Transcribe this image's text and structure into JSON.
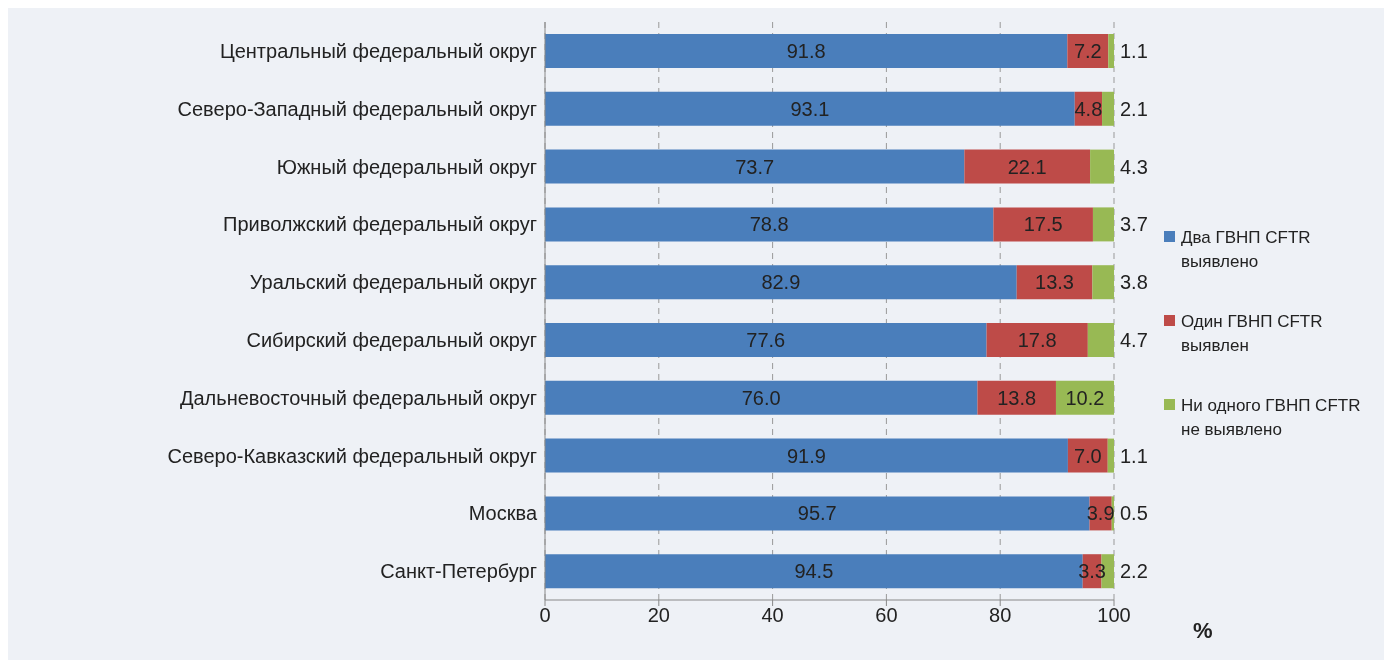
{
  "chart_data": {
    "type": "bar",
    "orientation": "horizontal",
    "stacked": true,
    "xlabel": "%",
    "categories": [
      "Центральный федеральный округ",
      "Северо-Западный федеральный округ",
      "Южный федеральный округ",
      "Приволжский федеральный округ",
      "Уральский федеральный округ",
      "Сибирский федеральный округ",
      "Дальневосточный федеральный округ",
      "Северо-Кавказский федеральный округ",
      "Москва",
      "Санкт-Петербург"
    ],
    "series": [
      {
        "name": "Два ГВНП CFTR выявлено",
        "color": "#4a7ebb",
        "values": [
          91.8,
          93.1,
          73.7,
          78.8,
          82.9,
          77.6,
          76.0,
          91.9,
          95.7,
          94.5
        ],
        "value_labels": [
          "91.8",
          "93.1",
          "73.7",
          "78.8",
          "82.9",
          "77.6",
          "76.0",
          "91.9",
          "95.7",
          "94.5"
        ]
      },
      {
        "name": "Один ГВНП CFTR выявлен",
        "color": "#be4b48",
        "values": [
          7.2,
          4.8,
          22.1,
          17.5,
          13.3,
          17.8,
          13.8,
          7.0,
          3.9,
          3.3
        ],
        "value_labels": [
          "7.2",
          "4.8",
          "22.1",
          "17.5",
          "13.3",
          "17.8",
          "13.8",
          "7.0",
          "3.9",
          "3.3"
        ]
      },
      {
        "name": "Ни одного ГВНП CFTR не выявлено",
        "color": "#98b954",
        "values": [
          1.1,
          2.1,
          4.3,
          3.7,
          3.8,
          4.7,
          10.2,
          1.1,
          0.5,
          2.2
        ],
        "value_labels": [
          "1.1",
          "2.1",
          "4.3",
          "3.7",
          "3.8",
          "4.7",
          "10.2",
          "1.1",
          "0.5",
          "2.2"
        ]
      }
    ],
    "xlim": [
      0,
      100
    ],
    "xticks": [
      0,
      20,
      40,
      60,
      80,
      100
    ],
    "grid": "x",
    "legend": "right"
  }
}
